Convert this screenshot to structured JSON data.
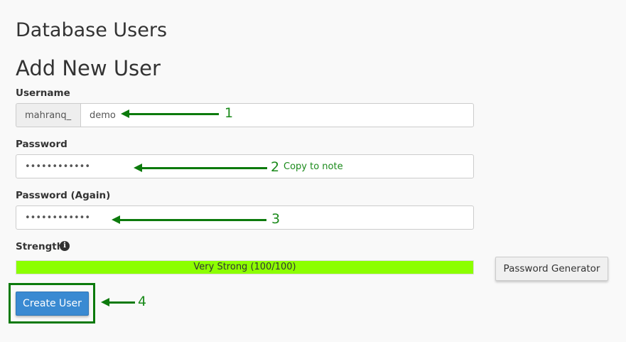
{
  "page_title": "Database Users",
  "section_title": "Add New User",
  "username": {
    "label": "Username",
    "prefix": "mahranq_",
    "value": "demo"
  },
  "password": {
    "label": "Password",
    "value": "••••••••••••"
  },
  "password_again": {
    "label": "Password (Again)",
    "value": "••••••••••••"
  },
  "strength": {
    "label": "Strength",
    "text": "Very Strong (100/100)",
    "percent": 100,
    "color": "#8cff00"
  },
  "password_generator_label": "Password Generator",
  "create_user_label": "Create User",
  "annotations": {
    "a1": "1",
    "a2": "2",
    "a2_note": "Copy to note",
    "a3": "3",
    "a4": "4",
    "color": "#0c7a0c"
  }
}
